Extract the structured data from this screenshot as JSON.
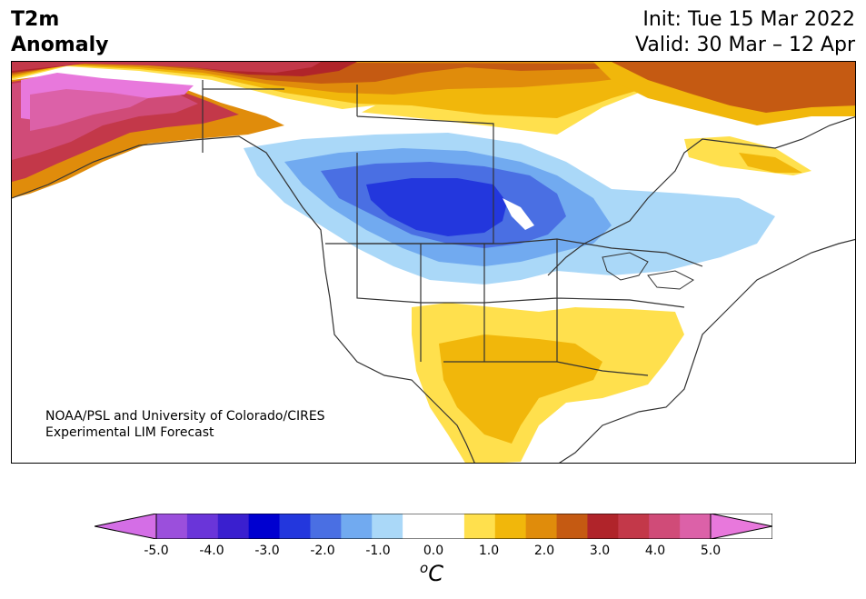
{
  "title": {
    "left_line1": "T2m",
    "left_line2": "Anomaly",
    "init": "Init: Tue 15 Mar 2022",
    "valid": "Valid: 30 Mar – 12 Apr"
  },
  "credit": {
    "line1": "NOAA/PSL and University of Colorado/CIRES",
    "line2": "Experimental LIM Forecast"
  },
  "colorbar": {
    "ticks": [
      "-5.0",
      "-4.0",
      "-3.0",
      "-2.0",
      "-1.0",
      "0.0",
      "1.0",
      "2.0",
      "3.0",
      "4.0",
      "5.0"
    ],
    "unit_sup": "o",
    "unit_base": "C",
    "colors": [
      "#d46ee6",
      "#9b4fdc",
      "#6a35d9",
      "#3a1fcf",
      "#0000d0",
      "#2337dd",
      "#4a6fe3",
      "#71aaf0",
      "#aad8f8",
      "#ffffff",
      "#ffffff",
      "#ffe04d",
      "#f1b70b",
      "#e08c0b",
      "#c55a12",
      "#b0242a",
      "#c33849",
      "#d04b78",
      "#dc61a8",
      "#e878dc"
    ],
    "range": [
      -5.0,
      5.0
    ],
    "step": 0.5
  },
  "map": {
    "region": "North America",
    "colors": {
      "land_outline": "#333333",
      "cold_strong": "#2337dd",
      "cold_mid": "#4a6fe3",
      "cold_light": "#71aaf0",
      "cold_faint": "#aad8f8",
      "warm_faint": "#ffe04d",
      "warm_mid": "#f1b70b",
      "warm_orange": "#e08c0b",
      "warm_rust": "#c55a12",
      "warm_red": "#b0242a",
      "warm_crimson": "#c33849",
      "warm_rose": "#d04b78",
      "warm_pink": "#dc61a8",
      "warm_magenta": "#e878dc"
    }
  }
}
